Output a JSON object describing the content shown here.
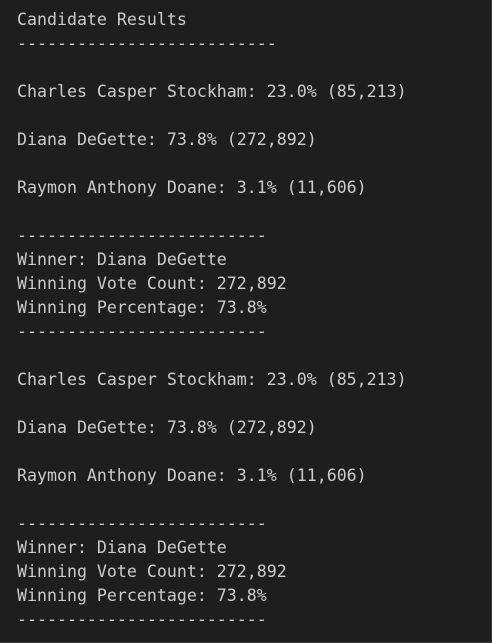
{
  "terminal": {
    "header": "Candidate Results",
    "rule_long": "--------------------------",
    "rule_short": "-------------------------",
    "candidates": [
      "Charles Casper Stockham: 23.0% (85,213)",
      "Diana DeGette: 73.8% (272,892)",
      "Raymon Anthony Doane: 3.1% (11,606)"
    ],
    "winner": "Winner: Diana DeGette",
    "winning_vote_count": "Winning Vote Count: 272,892",
    "winning_percentage": "Winning Percentage: 73.8%"
  }
}
